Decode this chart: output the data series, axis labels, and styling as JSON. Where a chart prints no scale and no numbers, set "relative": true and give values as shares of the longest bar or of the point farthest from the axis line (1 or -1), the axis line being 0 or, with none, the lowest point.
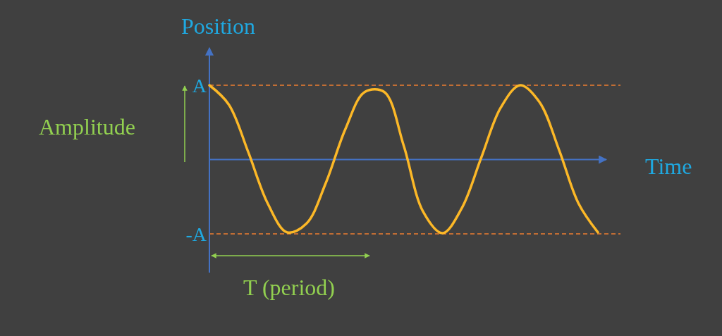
{
  "chart_data": {
    "type": "line",
    "xlabel": "Time",
    "ylabel": "Position",
    "categories": [
      null,
      null,
      null,
      null,
      null,
      null,
      null,
      null,
      null,
      null,
      null,
      null,
      null,
      null,
      null,
      null,
      null,
      null,
      null,
      null,
      null
    ],
    "series": [
      {
        "color": "#fcb827",
        "values": [
          1,
          0.74,
          0.1,
          -0.59,
          -0.98,
          -0.86,
          -0.31,
          0.41,
          0.91,
          0.91,
          0.19,
          -0.7,
          -0.99,
          -0.65,
          0.03,
          0.7,
          1,
          0.77,
          0.13,
          -0.59,
          -0.98
        ]
      }
    ],
    "relative": true,
    "marker": "none",
    "line_style": "solid",
    "ref_lines": [
      {
        "axis": "y",
        "value": 0,
        "color": "#4472c4",
        "line_style": "solid"
      },
      {
        "axis": "y",
        "value": 1,
        "label": "A",
        "color": "#ed7d31",
        "line_style": "dashed"
      },
      {
        "axis": "y",
        "value": -1,
        "label": "-A",
        "color": "#ed7d31",
        "line_style": "dashed"
      }
    ],
    "annotations": [
      "Amplitude",
      "T (period)"
    ]
  }
}
